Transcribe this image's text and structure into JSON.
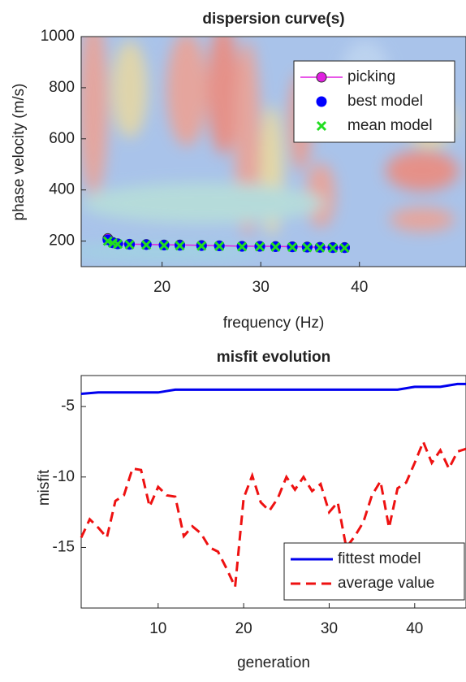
{
  "chart_data": [
    {
      "type": "line",
      "title": "dispersion curve(s)",
      "xlabel": "frequency (Hz)",
      "ylabel": "phase velocity (m/s)",
      "xlim": [
        11.8,
        50.8
      ],
      "ylim": [
        100,
        1000
      ],
      "xticks": [
        20,
        30,
        40
      ],
      "yticks": [
        200,
        400,
        600,
        800,
        1000
      ],
      "legend": "upper right",
      "x": [
        14.5,
        15.0,
        15.5,
        16.7,
        18.4,
        20.2,
        21.8,
        24.0,
        25.8,
        28.1,
        29.9,
        31.5,
        33.2,
        34.7,
        36.0,
        37.3,
        38.5
      ],
      "series": [
        {
          "name": "picking",
          "color": "#e020e0",
          "marker": "o",
          "linestyle": "solid",
          "values": [
            210,
            195,
            190,
            188,
            187,
            185,
            185,
            183,
            182,
            180,
            180,
            179,
            178,
            177,
            176,
            175,
            175
          ]
        },
        {
          "name": "best model",
          "color": "#0000ff",
          "marker": "o",
          "linestyle": "none",
          "values": [
            205,
            193,
            189,
            187,
            186,
            184,
            183,
            182,
            181,
            179,
            179,
            178,
            177,
            176,
            175,
            174,
            174
          ]
        },
        {
          "name": "mean model",
          "color": "#22dd22",
          "marker": "x",
          "linestyle": "none",
          "values": [
            200,
            192,
            188,
            186,
            185,
            183,
            182,
            181,
            180,
            178,
            178,
            177,
            176,
            175,
            174,
            173,
            173
          ]
        }
      ]
    },
    {
      "type": "line",
      "title": "misfit evolution",
      "xlabel": "generation",
      "ylabel": "misfit",
      "xlim": [
        1,
        46
      ],
      "ylim": [
        -19.3,
        -2.8
      ],
      "xticks": [
        10,
        20,
        30,
        40
      ],
      "yticks": [
        -15,
        -10,
        -5
      ],
      "legend": "lower right",
      "x": [
        1,
        2,
        3,
        4,
        5,
        6,
        7,
        8,
        9,
        10,
        11,
        12,
        13,
        14,
        15,
        16,
        17,
        18,
        19,
        20,
        21,
        22,
        23,
        24,
        25,
        26,
        27,
        28,
        29,
        30,
        31,
        32,
        33,
        34,
        35,
        36,
        37,
        38,
        39,
        40,
        41,
        42,
        43,
        44,
        45,
        46
      ],
      "series": [
        {
          "name": "fittest model",
          "color": "#0000ee",
          "marker": "none",
          "linestyle": "solid",
          "values": [
            -4.1,
            -4.05,
            -4.0,
            -4.0,
            -4.0,
            -4.0,
            -4.0,
            -4.0,
            -4.0,
            -4.0,
            -3.9,
            -3.8,
            -3.8,
            -3.8,
            -3.8,
            -3.8,
            -3.8,
            -3.8,
            -3.8,
            -3.8,
            -3.8,
            -3.8,
            -3.8,
            -3.8,
            -3.8,
            -3.8,
            -3.8,
            -3.8,
            -3.8,
            -3.8,
            -3.8,
            -3.8,
            -3.8,
            -3.8,
            -3.8,
            -3.8,
            -3.8,
            -3.8,
            -3.7,
            -3.6,
            -3.6,
            -3.6,
            -3.6,
            -3.5,
            -3.4,
            -3.4
          ]
        },
        {
          "name": "average value",
          "color": "#ee1111",
          "marker": "none",
          "linestyle": "dashed",
          "values": [
            -14.3,
            -13.0,
            -13.6,
            -14.3,
            -11.7,
            -11.3,
            -9.4,
            -9.5,
            -12.1,
            -10.7,
            -11.3,
            -11.4,
            -14.2,
            -13.5,
            -14.0,
            -15.0,
            -15.3,
            -16.5,
            -17.8,
            -11.5,
            -9.9,
            -11.8,
            -12.4,
            -11.5,
            -10.0,
            -10.9,
            -10.0,
            -11.0,
            -10.5,
            -12.5,
            -11.8,
            -15.0,
            -14.2,
            -13.2,
            -11.3,
            -10.3,
            -13.6,
            -10.8,
            -10.4,
            -9.0,
            -7.5,
            -9.0,
            -8.1,
            -9.4,
            -8.2,
            -8.0
          ]
        }
      ]
    }
  ]
}
